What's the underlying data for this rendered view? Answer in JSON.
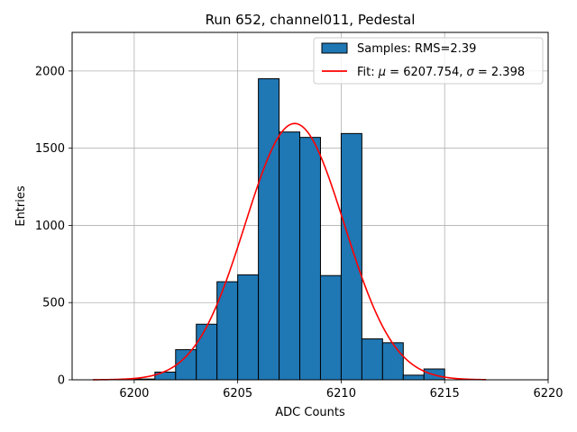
{
  "chart_data": {
    "type": "bar",
    "title": "Run 652, channel011, Pedestal",
    "xlabel": "ADC Counts",
    "ylabel": "Entries",
    "xlim": [
      6197,
      6220
    ],
    "ylim": [
      0,
      2250
    ],
    "xticks": [
      6200,
      6205,
      6210,
      6215,
      6220
    ],
    "yticks": [
      0,
      500,
      1000,
      1500,
      2000
    ],
    "grid": true,
    "legend_position": "top-right",
    "bar_color": "#1f77b4",
    "bar_edge_color": "#000000",
    "fit_color": "#ff0000",
    "histogram": {
      "name": "Samples: RMS=2.39",
      "bin_width": 1,
      "bins": [
        6200,
        6201,
        6202,
        6203,
        6204,
        6205,
        6206,
        6207,
        6208,
        6209,
        6210,
        6211,
        6212,
        6213,
        6214
      ],
      "values": [
        5,
        50,
        195,
        360,
        635,
        680,
        1950,
        1605,
        1570,
        675,
        1595,
        265,
        240,
        30,
        70
      ]
    },
    "fit": {
      "name": "Fit: μ = 6207.754, σ = 2.398",
      "name_prefix": "Fit: ",
      "mu_symbol": "μ",
      "mu_text": " = 6207.754, ",
      "sigma_symbol": "σ",
      "sigma_text": " = 2.398",
      "mu": 6207.754,
      "sigma": 2.398,
      "amplitude": 1660,
      "x_range": [
        6198,
        6217
      ]
    }
  }
}
